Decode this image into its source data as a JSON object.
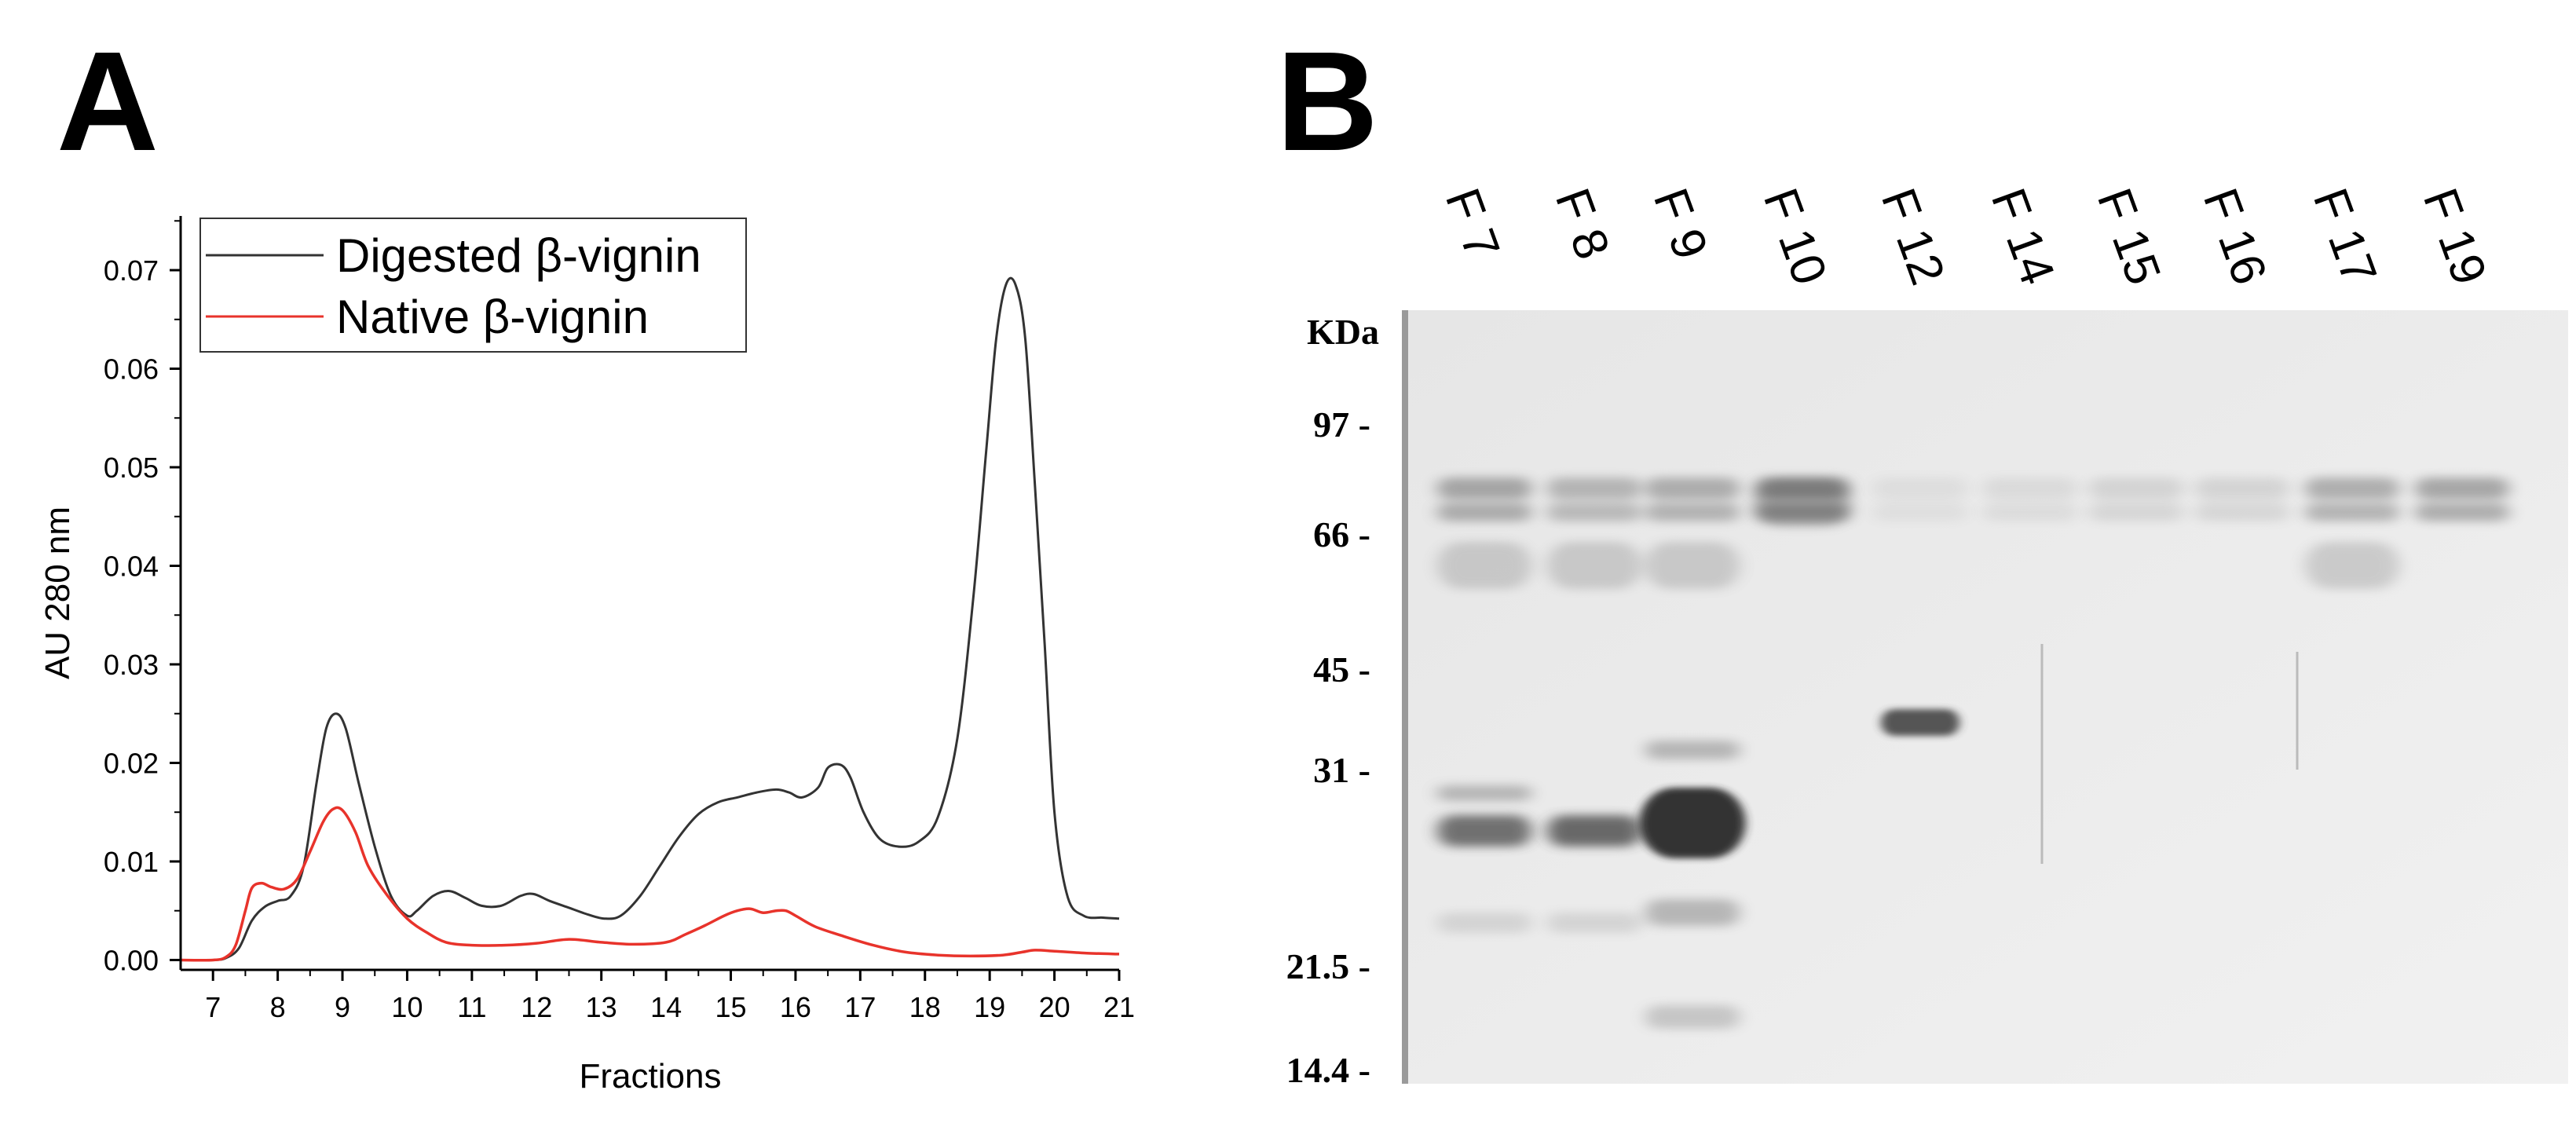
{
  "panel_a": {
    "letter": "A"
  },
  "panel_b": {
    "letter": "B"
  },
  "chart_data": {
    "type": "line",
    "title": "",
    "xlabel": "Fractions",
    "ylabel": "AU 280 nm",
    "xlim": [
      6.5,
      21
    ],
    "ylim": [
      -0.001,
      0.0755
    ],
    "x_ticks": [
      7,
      8,
      9,
      10,
      11,
      12,
      13,
      14,
      15,
      16,
      17,
      18,
      19,
      20,
      21
    ],
    "x_tick_labels": [
      "7",
      "8",
      "9",
      "10",
      "11",
      "12",
      "13",
      "14",
      "15",
      "16",
      "17",
      "18",
      "19",
      "20",
      "21"
    ],
    "y_ticks": [
      0,
      0.01,
      0.02,
      0.03,
      0.04,
      0.05,
      0.06,
      0.07
    ],
    "y_tick_labels": [
      "0.00",
      "0.01",
      "0.02",
      "0.03",
      "0.04",
      "0.05",
      "0.06",
      "0.07"
    ],
    "grid": false,
    "legend_position": "top-left",
    "series": [
      {
        "name": "Digested β-vignin",
        "color": "#333333",
        "x": [
          6.5,
          7.0,
          7.2,
          7.4,
          7.6,
          7.8,
          8.0,
          8.2,
          8.4,
          8.6,
          8.75,
          8.9,
          9.05,
          9.25,
          9.5,
          9.75,
          10.0,
          10.15,
          10.4,
          10.65,
          10.9,
          11.15,
          11.45,
          11.75,
          11.95,
          12.2,
          12.5,
          12.8,
          13.05,
          13.3,
          13.6,
          13.9,
          14.2,
          14.5,
          14.8,
          15.1,
          15.4,
          15.7,
          15.9,
          16.1,
          16.35,
          16.5,
          16.7,
          16.85,
          17.05,
          17.3,
          17.6,
          17.9,
          18.2,
          18.5,
          18.75,
          18.95,
          19.1,
          19.25,
          19.4,
          19.55,
          19.7,
          19.85,
          20.0,
          20.2,
          20.45,
          20.75,
          21.0
        ],
        "values": [
          0,
          0,
          0.0002,
          0.0012,
          0.004,
          0.0054,
          0.006,
          0.0065,
          0.0095,
          0.018,
          0.0235,
          0.025,
          0.0235,
          0.018,
          0.0115,
          0.0065,
          0.0045,
          0.005,
          0.0065,
          0.007,
          0.0063,
          0.0055,
          0.0055,
          0.0065,
          0.0067,
          0.006,
          0.0053,
          0.0046,
          0.0042,
          0.0045,
          0.0065,
          0.0095,
          0.0125,
          0.0148,
          0.016,
          0.0165,
          0.017,
          0.0173,
          0.017,
          0.0165,
          0.0175,
          0.0195,
          0.0198,
          0.0185,
          0.015,
          0.0123,
          0.0115,
          0.012,
          0.0145,
          0.0225,
          0.037,
          0.052,
          0.063,
          0.0685,
          0.0685,
          0.063,
          0.048,
          0.032,
          0.015,
          0.0065,
          0.0045,
          0.0043,
          0.0042
        ]
      },
      {
        "name": "Native β-vignin",
        "color": "#e8332b",
        "x": [
          6.5,
          7.0,
          7.2,
          7.35,
          7.5,
          7.6,
          7.75,
          7.9,
          8.1,
          8.3,
          8.5,
          8.7,
          8.85,
          9.0,
          9.2,
          9.4,
          9.7,
          10.0,
          10.3,
          10.6,
          11.0,
          11.5,
          12.0,
          12.5,
          13.0,
          13.5,
          14.0,
          14.3,
          14.6,
          14.9,
          15.1,
          15.3,
          15.5,
          15.7,
          15.85,
          16.0,
          16.3,
          16.7,
          17.2,
          17.7,
          18.2,
          18.7,
          19.2,
          19.5,
          19.7,
          20.0,
          20.5,
          21.0
        ],
        "values": [
          0,
          0,
          0.0003,
          0.0015,
          0.005,
          0.0073,
          0.0078,
          0.0074,
          0.0072,
          0.0082,
          0.011,
          0.014,
          0.0153,
          0.0152,
          0.013,
          0.0095,
          0.0065,
          0.0042,
          0.0028,
          0.0018,
          0.0015,
          0.0015,
          0.0017,
          0.0021,
          0.0018,
          0.0016,
          0.0018,
          0.0026,
          0.0035,
          0.0045,
          0.005,
          0.0052,
          0.0048,
          0.005,
          0.005,
          0.0045,
          0.0034,
          0.0025,
          0.0015,
          0.0008,
          0.0005,
          0.0004,
          0.0005,
          0.0008,
          0.001,
          0.0009,
          0.0007,
          0.0006
        ]
      }
    ]
  },
  "gel": {
    "kda_label": "KDa",
    "markers": [
      {
        "label": "97 -",
        "kda": 97
      },
      {
        "label": "66 -",
        "kda": 66
      },
      {
        "label": "45 -",
        "kda": 45
      },
      {
        "label": "31 -",
        "kda": 31
      },
      {
        "label": "21.5 -",
        "kda": 21.5
      },
      {
        "label": "14.4 -",
        "kda": 14.4
      }
    ],
    "lanes": [
      "F 7",
      "F 8",
      "F 9",
      "F 10",
      "F 12",
      "F 14",
      "F 15",
      "F 16",
      "F 17",
      "F 19"
    ]
  }
}
